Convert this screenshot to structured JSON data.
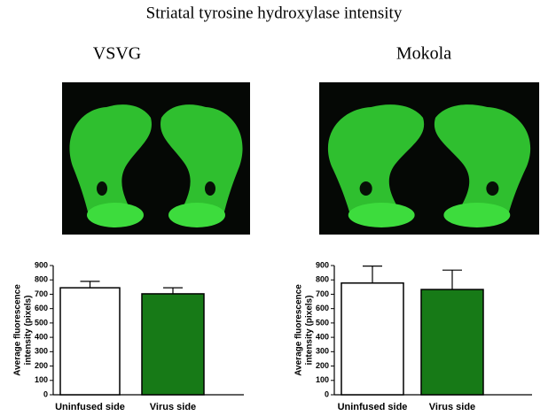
{
  "title": "Striatal tyrosine hydroxylase intensity",
  "chart_data": [
    {
      "type": "bar",
      "title": "VSVG",
      "ylabel": [
        "Average fluorescence",
        "intensity (pixels)"
      ],
      "categories": [
        "Uninfused side",
        "Virus side"
      ],
      "values": [
        745,
        703
      ],
      "errors": [
        45,
        42
      ],
      "colors": [
        "#ffffff",
        "#177a17"
      ],
      "ylim": [
        0,
        900
      ],
      "yticks": [
        0,
        100,
        200,
        300,
        400,
        500,
        600,
        700,
        800,
        900
      ]
    },
    {
      "type": "bar",
      "title": "Mokola",
      "ylabel": [
        "Average fluorescence",
        "intensity (pixels)"
      ],
      "categories": [
        "Uninfused side",
        "Virus side"
      ],
      "values": [
        778,
        733
      ],
      "errors": [
        118,
        135
      ],
      "colors": [
        "#ffffff",
        "#177a17"
      ],
      "ylim": [
        0,
        900
      ],
      "yticks": [
        0,
        100,
        200,
        300,
        400,
        500,
        600,
        700,
        800,
        900
      ]
    }
  ]
}
